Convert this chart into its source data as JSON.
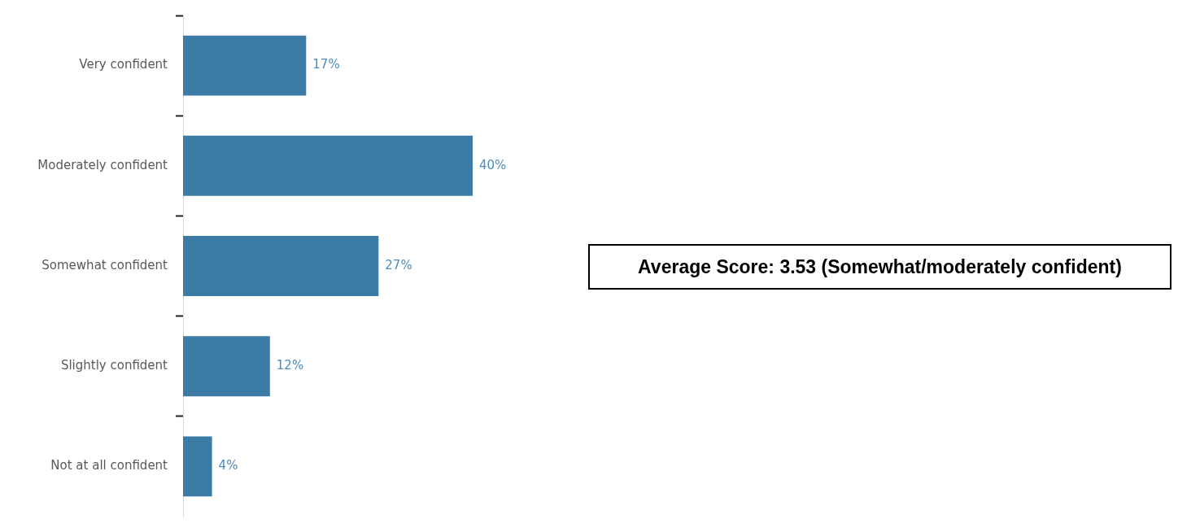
{
  "chart_data": {
    "type": "bar",
    "orientation": "horizontal",
    "categories": [
      "Very confident",
      "Moderately confident",
      "Somewhat confident",
      "Slightly confident",
      "Not at all confident"
    ],
    "values": [
      17,
      40,
      27,
      12,
      4
    ],
    "value_labels": [
      "17%",
      "40%",
      "27%",
      "12%",
      "4%"
    ],
    "color": "#3b7ba6",
    "tick_labels": "y",
    "annotations": [
      "Average Score: 3.53 (Somewhat/moderately confident)"
    ]
  }
}
